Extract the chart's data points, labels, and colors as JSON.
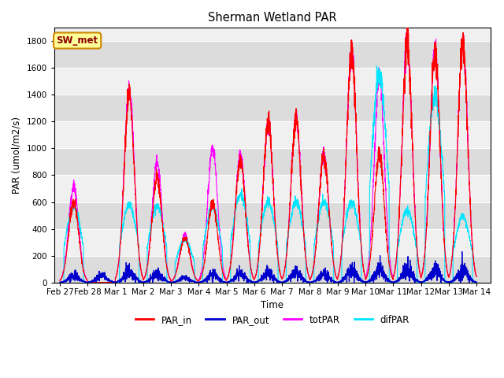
{
  "title": "Sherman Wetland PAR",
  "ylabel": "PAR (umol/m2/s)",
  "xlabel": "Time",
  "ylim": [
    0,
    1900
  ],
  "xlim_days": [
    -0.2,
    15.5
  ],
  "tick_labels": [
    "Feb 27",
    "Feb 28",
    "Mar 1",
    "Mar 2",
    "Mar 3",
    "Mar 4",
    "Mar 5",
    "Mar 6",
    "Mar 7",
    "Mar 8",
    "Mar 9",
    "Mar 10",
    "Mar 11",
    "Mar 12",
    "Mar 13",
    "Mar 14"
  ],
  "tick_positions": [
    0,
    1,
    2,
    3,
    4,
    5,
    6,
    7,
    8,
    9,
    10,
    11,
    12,
    13,
    14,
    15
  ],
  "station_label": "SW_met",
  "background_color": "#ffffff",
  "plot_bg_color_light": "#f0f0f0",
  "plot_bg_color_dark": "#dcdcdc",
  "grid_color": "#ffffff",
  "colors": {
    "PAR_in": "#ff0000",
    "PAR_out": "#0000cc",
    "totPAR": "#ff00ff",
    "difPAR": "#00e5ff"
  },
  "day_peaks": {
    "PAR_in": [
      600,
      0,
      1400,
      780,
      335,
      590,
      920,
      1180,
      1220,
      950,
      1720,
      950,
      1790,
      1720,
      1770
    ],
    "totPAR": [
      710,
      0,
      1460,
      890,
      360,
      1000,
      960,
      1190,
      1230,
      960,
      1740,
      1540,
      1800,
      1740,
      1790
    ],
    "difPAR": [
      570,
      0,
      580,
      570,
      320,
      560,
      660,
      600,
      600,
      600,
      600,
      1540,
      540,
      1385,
      490
    ],
    "PAR_out": [
      50,
      50,
      80,
      65,
      30,
      55,
      65,
      65,
      70,
      60,
      90,
      90,
      90,
      90,
      90
    ]
  },
  "yticks": [
    0,
    200,
    400,
    600,
    800,
    1000,
    1200,
    1400,
    1600,
    1800
  ],
  "legend_labels": [
    "PAR_in",
    "PAR_out",
    "totPAR",
    "difPAR"
  ]
}
